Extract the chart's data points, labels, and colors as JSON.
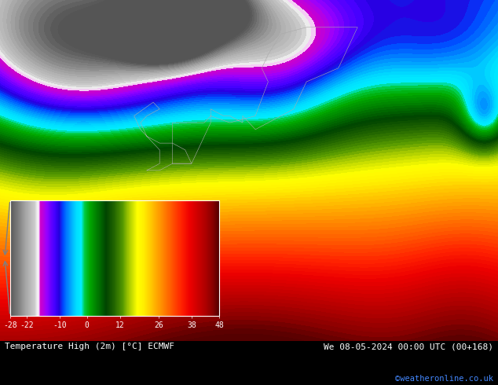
{
  "title_left": "Temperature High (2m) [°C] ECMWF",
  "title_right": "We 08-05-2024 00:00 UTC (00+168)",
  "credit": "©weatheronline.co.uk",
  "colorbar_ticks": [
    -28,
    -22,
    -10,
    0,
    12,
    26,
    38,
    48
  ],
  "cmap_nodes": [
    [
      0.0,
      "#555555"
    ],
    [
      0.048,
      "#888888"
    ],
    [
      0.079,
      "#aaaaaa"
    ],
    [
      0.119,
      "#cccccc"
    ],
    [
      0.135,
      "#ffffff"
    ],
    [
      0.145,
      "#cc00cc"
    ],
    [
      0.158,
      "#bb00dd"
    ],
    [
      0.175,
      "#9900ff"
    ],
    [
      0.195,
      "#6600ff"
    ],
    [
      0.215,
      "#4400ff"
    ],
    [
      0.234,
      "#2200dd"
    ],
    [
      0.253,
      "#0044ff"
    ],
    [
      0.27,
      "#0077ff"
    ],
    [
      0.285,
      "#009aff"
    ],
    [
      0.3,
      "#00bbff"
    ],
    [
      0.318,
      "#00ddff"
    ],
    [
      0.34,
      "#00eeff"
    ],
    [
      0.357,
      "#00cc44"
    ],
    [
      0.38,
      "#00aa00"
    ],
    [
      0.42,
      "#007700"
    ],
    [
      0.46,
      "#004400"
    ],
    [
      0.5,
      "#226600"
    ],
    [
      0.54,
      "#559900"
    ],
    [
      0.57,
      "#aacc00"
    ],
    [
      0.61,
      "#ffff00"
    ],
    [
      0.64,
      "#ffee00"
    ],
    [
      0.67,
      "#ffcc00"
    ],
    [
      0.7,
      "#ffaa00"
    ],
    [
      0.73,
      "#ff8800"
    ],
    [
      0.76,
      "#ff6600"
    ],
    [
      0.79,
      "#ff4400"
    ],
    [
      0.82,
      "#ff2200"
    ],
    [
      0.86,
      "#ee0000"
    ],
    [
      0.9,
      "#cc0000"
    ],
    [
      0.94,
      "#aa0000"
    ],
    [
      0.97,
      "#880000"
    ],
    [
      1.0,
      "#550000"
    ]
  ],
  "fig_width": 6.34,
  "fig_height": 4.9,
  "dpi": 100,
  "vmin": -28,
  "vmax": 48
}
